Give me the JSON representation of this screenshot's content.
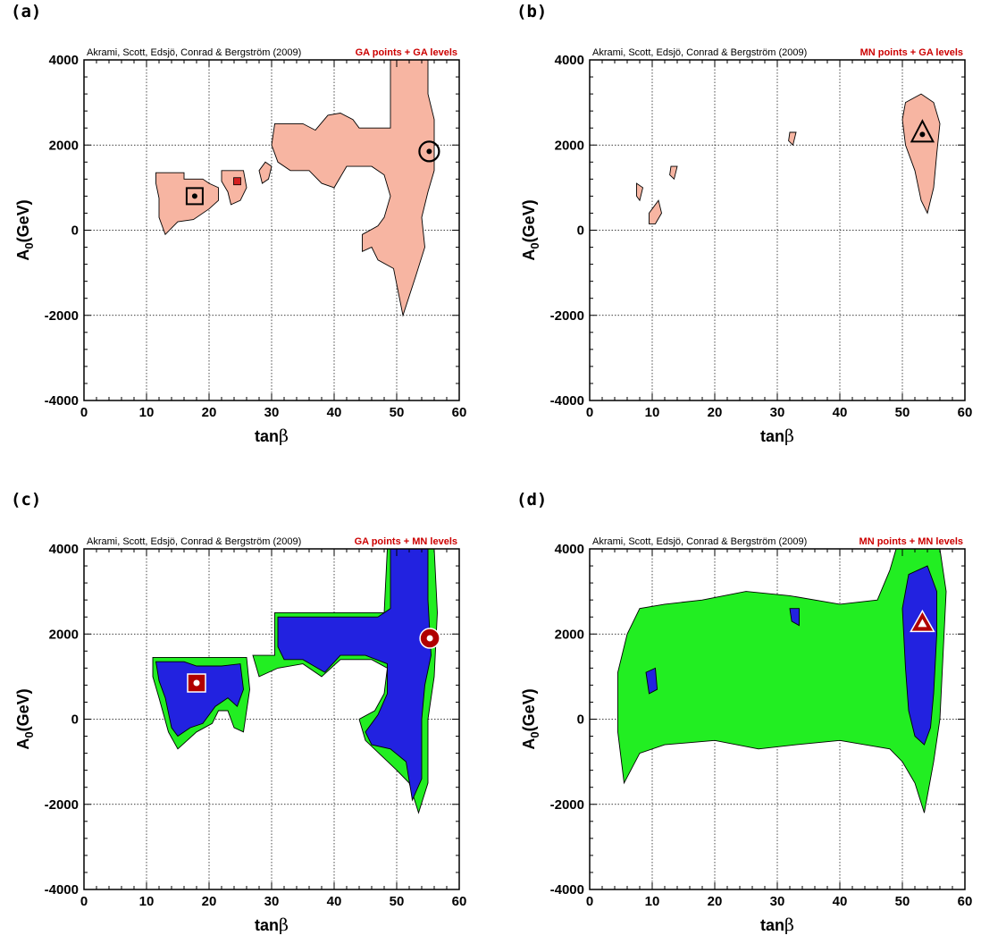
{
  "chart_data": [
    {
      "panel": "(a)",
      "type": "area",
      "credit": "Akrami, Scott, Edsjö, Conrad & Bergström (2009)",
      "subtitle": "GA points + GA levels",
      "xlabel": "tanβ",
      "ylabel": "A0 (GeV)",
      "xlim": [
        0,
        60
      ],
      "ylim": [
        -4000,
        4000
      ],
      "xticks": [
        "0",
        "10",
        "20",
        "30",
        "40",
        "50",
        "60"
      ],
      "yticks": [
        "-4000",
        "-2000",
        "0",
        "2000",
        "4000"
      ],
      "grid": true,
      "regions": [
        {
          "color": "#f7b5a2",
          "points": [
            [
              11.5,
              1350
            ],
            [
              16,
              1350
            ],
            [
              16,
              1200
            ],
            [
              19,
              1200
            ],
            [
              20,
              1100
            ],
            [
              21.5,
              1000
            ],
            [
              21.5,
              700
            ],
            [
              20,
              500
            ],
            [
              17.5,
              250
            ],
            [
              15,
              200
            ],
            [
              13,
              -100
            ],
            [
              12,
              300
            ],
            [
              12,
              750
            ],
            [
              11.5,
              1100
            ]
          ]
        },
        {
          "color": "#f7b5a2",
          "points": [
            [
              22,
              1400
            ],
            [
              25.5,
              1400
            ],
            [
              26,
              1000
            ],
            [
              25,
              700
            ],
            [
              23.5,
              600
            ],
            [
              23,
              900
            ],
            [
              22,
              1150
            ]
          ]
        },
        {
          "color": "#f7b5a2",
          "points": [
            [
              28,
              1400
            ],
            [
              29,
              1600
            ],
            [
              30,
              1500
            ],
            [
              29.5,
              1200
            ],
            [
              28.5,
              1100
            ]
          ]
        },
        {
          "color": "#f7b5a2",
          "points": [
            [
              30.5,
              2500
            ],
            [
              35,
              2500
            ],
            [
              37,
              2350
            ],
            [
              39,
              2700
            ],
            [
              41,
              2750
            ],
            [
              43,
              2600
            ],
            [
              44,
              2400
            ],
            [
              49,
              2400
            ],
            [
              49,
              4000
            ],
            [
              55,
              4000
            ],
            [
              55,
              3200
            ],
            [
              56,
              2600
            ],
            [
              56,
              1400
            ],
            [
              55,
              900
            ],
            [
              54,
              300
            ],
            [
              54.5,
              -400
            ],
            [
              53,
              -1100
            ],
            [
              51,
              -2000
            ],
            [
              49.5,
              -900
            ],
            [
              47,
              -700
            ],
            [
              46,
              -400
            ],
            [
              44.5,
              -500
            ],
            [
              44.5,
              -100
            ],
            [
              47,
              100
            ],
            [
              48,
              300
            ],
            [
              49,
              800
            ],
            [
              48,
              1300
            ],
            [
              46,
              1500
            ],
            [
              42,
              1500
            ],
            [
              40,
              1000
            ],
            [
              38,
              1100
            ],
            [
              36,
              1400
            ],
            [
              33,
              1400
            ],
            [
              31,
              1600
            ],
            [
              30,
              2000
            ]
          ]
        }
      ],
      "markers": [
        {
          "x": 17.7,
          "y": 800,
          "shape": "square-open",
          "color": "#000000"
        },
        {
          "x": 55.2,
          "y": 1850,
          "shape": "circle-open",
          "color": "#000000"
        },
        {
          "x": 24.5,
          "y": 1150,
          "shape": "square-filled",
          "color": "#d42020"
        }
      ]
    },
    {
      "panel": "(b)",
      "type": "area",
      "credit": "Akrami, Scott, Edsjö, Conrad & Bergström (2009)",
      "subtitle": "MN points + GA levels",
      "xlabel": "tanβ",
      "ylabel": "A0 (GeV)",
      "xlim": [
        0,
        60
      ],
      "ylim": [
        -4000,
        4000
      ],
      "xticks": [
        "0",
        "10",
        "20",
        "30",
        "40",
        "50",
        "60"
      ],
      "yticks": [
        "-4000",
        "-2000",
        "0",
        "2000",
        "4000"
      ],
      "grid": true,
      "regions": [
        {
          "color": "#f7b5a2",
          "points": [
            [
              50.5,
              3000
            ],
            [
              53,
              3200
            ],
            [
              55,
              3000
            ],
            [
              56,
              2500
            ],
            [
              55.5,
              1800
            ],
            [
              55,
              1000
            ],
            [
              54,
              400
            ],
            [
              53,
              700
            ],
            [
              52,
              1400
            ],
            [
              50.5,
              2000
            ],
            [
              50,
              2600
            ]
          ]
        },
        {
          "color": "#f7b5a2",
          "points": [
            [
              9.5,
              400
            ],
            [
              11,
              700
            ],
            [
              11.5,
              400
            ],
            [
              10.5,
              150
            ],
            [
              9.5,
              150
            ]
          ]
        },
        {
          "color": "#f7b5a2",
          "points": [
            [
              7.5,
              1100
            ],
            [
              8.5,
              1000
            ],
            [
              8,
              700
            ],
            [
              7.5,
              800
            ]
          ]
        },
        {
          "color": "#f7b5a2",
          "points": [
            [
              13,
              1500
            ],
            [
              14,
              1500
            ],
            [
              13.5,
              1200
            ],
            [
              12.8,
              1300
            ]
          ]
        },
        {
          "color": "#f7b5a2",
          "points": [
            [
              32,
              2300
            ],
            [
              33,
              2300
            ],
            [
              32.5,
              2000
            ],
            [
              31.8,
              2100
            ]
          ]
        }
      ],
      "markers": [
        {
          "x": 53.2,
          "y": 2250,
          "shape": "triangle-open",
          "color": "#000000"
        }
      ]
    },
    {
      "panel": "(c)",
      "type": "area",
      "credit": "Akrami, Scott, Edsjö, Conrad & Bergström (2009)",
      "subtitle": "GA points + MN levels",
      "xlabel": "tanβ",
      "ylabel": "A0 (GeV)",
      "xlim": [
        0,
        60
      ],
      "ylim": [
        -4000,
        4000
      ],
      "xticks": [
        "0",
        "10",
        "20",
        "30",
        "40",
        "50",
        "60"
      ],
      "yticks": [
        "-4000",
        "-2000",
        "0",
        "2000",
        "4000"
      ],
      "grid": true,
      "regions": [
        {
          "color": "#22ee22",
          "points": [
            [
              11,
              1450
            ],
            [
              26,
              1450
            ],
            [
              26.5,
              700
            ],
            [
              25.5,
              -300
            ],
            [
              24,
              -200
            ],
            [
              23,
              200
            ],
            [
              21.5,
              200
            ],
            [
              20.5,
              -100
            ],
            [
              18,
              -300
            ],
            [
              15,
              -700
            ],
            [
              13.5,
              -300
            ],
            [
              12,
              500
            ],
            [
              11,
              1000
            ]
          ]
        },
        {
          "color": "#22ee22",
          "points": [
            [
              27,
              1500
            ],
            [
              30.5,
              1500
            ],
            [
              30.5,
              2500
            ],
            [
              40,
              2500
            ],
            [
              48,
              2500
            ],
            [
              48.5,
              4000
            ],
            [
              56,
              4000
            ],
            [
              56.5,
              2500
            ],
            [
              56,
              1000
            ],
            [
              55,
              0
            ],
            [
              55,
              -1500
            ],
            [
              53.5,
              -2200
            ],
            [
              52,
              -1500
            ],
            [
              50,
              -1200
            ],
            [
              45,
              -500
            ],
            [
              44,
              0
            ],
            [
              46.5,
              200
            ],
            [
              48,
              600
            ],
            [
              48.5,
              1200
            ],
            [
              46,
              1400
            ],
            [
              41,
              1400
            ],
            [
              38,
              1000
            ],
            [
              35,
              1300
            ],
            [
              31,
              1200
            ],
            [
              28,
              1000
            ]
          ]
        }
      ],
      "regions_inner": [
        {
          "color": "#2222e0",
          "points": [
            [
              11.5,
              1350
            ],
            [
              16,
              1350
            ],
            [
              18,
              1250
            ],
            [
              22,
              1250
            ],
            [
              25,
              1300
            ],
            [
              25.5,
              700
            ],
            [
              24.5,
              300
            ],
            [
              23,
              500
            ],
            [
              21,
              300
            ],
            [
              19,
              -100
            ],
            [
              17,
              -200
            ],
            [
              15,
              -400
            ],
            [
              14,
              -200
            ],
            [
              13,
              500
            ],
            [
              12,
              900
            ]
          ]
        },
        {
          "color": "#2222e0",
          "points": [
            [
              31,
              2400
            ],
            [
              40,
              2400
            ],
            [
              47,
              2400
            ],
            [
              49,
              2600
            ],
            [
              49,
              4000
            ],
            [
              55,
              4000
            ],
            [
              55,
              2800
            ],
            [
              55.5,
              1500
            ],
            [
              54.5,
              800
            ],
            [
              54,
              0
            ],
            [
              54,
              -1400
            ],
            [
              52.5,
              -1900
            ],
            [
              51.5,
              -1000
            ],
            [
              49,
              -700
            ],
            [
              46,
              -600
            ],
            [
              45,
              -300
            ],
            [
              47,
              100
            ],
            [
              48.5,
              600
            ],
            [
              48.5,
              1300
            ],
            [
              45,
              1500
            ],
            [
              41,
              1500
            ],
            [
              38.5,
              1100
            ],
            [
              35,
              1400
            ],
            [
              32,
              1400
            ],
            [
              31,
              1700
            ]
          ]
        }
      ],
      "markers": [
        {
          "x": 18,
          "y": 850,
          "shape": "square-ring",
          "color": "#b00000"
        },
        {
          "x": 55.3,
          "y": 1900,
          "shape": "circle-ring",
          "color": "#b00000"
        }
      ]
    },
    {
      "panel": "(d)",
      "type": "area",
      "credit": "Akrami, Scott, Edsjö, Conrad & Bergström (2009)",
      "subtitle": "MN points + MN levels",
      "xlabel": "tanβ",
      "ylabel": "A0 (GeV)",
      "xlim": [
        0,
        60
      ],
      "ylim": [
        -4000,
        4000
      ],
      "xticks": [
        "0",
        "10",
        "20",
        "30",
        "40",
        "50",
        "60"
      ],
      "yticks": [
        "-4000",
        "-2000",
        "0",
        "2000",
        "4000"
      ],
      "grid": true,
      "regions": [
        {
          "color": "#22ee22",
          "points": [
            [
              4.5,
              1100
            ],
            [
              6,
              2000
            ],
            [
              8,
              2600
            ],
            [
              12,
              2700
            ],
            [
              18,
              2800
            ],
            [
              25,
              3000
            ],
            [
              32,
              2900
            ],
            [
              40,
              2700
            ],
            [
              46,
              2800
            ],
            [
              48,
              3500
            ],
            [
              49,
              4000
            ],
            [
              56,
              4000
            ],
            [
              57,
              3000
            ],
            [
              56.5,
              1500
            ],
            [
              56,
              0
            ],
            [
              55,
              -1000
            ],
            [
              53.5,
              -2200
            ],
            [
              52,
              -1500
            ],
            [
              50,
              -1000
            ],
            [
              48,
              -700
            ],
            [
              44,
              -600
            ],
            [
              40,
              -500
            ],
            [
              33,
              -600
            ],
            [
              27,
              -700
            ],
            [
              20,
              -500
            ],
            [
              12,
              -600
            ],
            [
              8,
              -800
            ],
            [
              5.5,
              -1500
            ],
            [
              4.5,
              -300
            ]
          ]
        }
      ],
      "regions_inner": [
        {
          "color": "#2222e0",
          "points": [
            [
              50,
              2600
            ],
            [
              51,
              3400
            ],
            [
              54,
              3600
            ],
            [
              55.5,
              3000
            ],
            [
              55.5,
              2000
            ],
            [
              55,
              600
            ],
            [
              54.5,
              -200
            ],
            [
              53.5,
              -600
            ],
            [
              52,
              -400
            ],
            [
              51,
              200
            ],
            [
              50.5,
              1200
            ]
          ]
        },
        {
          "color": "#2222e0",
          "points": [
            [
              9,
              1100
            ],
            [
              10.5,
              1200
            ],
            [
              10.8,
              700
            ],
            [
              9.5,
              600
            ]
          ]
        },
        {
          "color": "#2222e0",
          "points": [
            [
              32,
              2600
            ],
            [
              33.5,
              2600
            ],
            [
              33.5,
              2200
            ],
            [
              32.3,
              2300
            ]
          ]
        }
      ],
      "markers": [
        {
          "x": 53.2,
          "y": 2250,
          "shape": "triangle-ring",
          "color": "#b00000"
        }
      ]
    }
  ]
}
